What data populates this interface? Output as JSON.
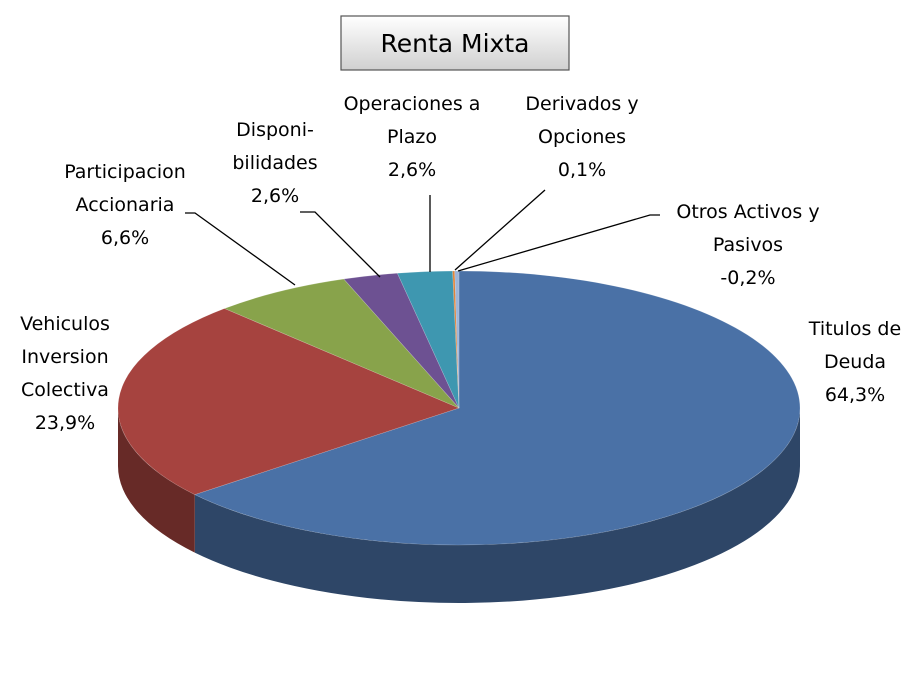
{
  "chart_data": {
    "type": "pie3d",
    "title": "Renta Mixta",
    "categories": [
      "Titulos de\nDeuda",
      "Vehiculos\nInversion\nColectiva",
      "Participacion\nAccionaria",
      "Disponi-\nbilidades",
      "Operaciones a\nPlazo",
      "Derivados y\nOpciones",
      "Otros Activos y\nPasivos"
    ],
    "values": [
      64.3,
      23.9,
      6.6,
      2.6,
      2.6,
      0.1,
      -0.2
    ],
    "value_labels": [
      "64,3%",
      "23,9%",
      "6,6%",
      "2,6%",
      "2,6%",
      "0,1%",
      "-0,2%"
    ],
    "colors": [
      "#4a71a6",
      "#a6433f",
      "#88a34b",
      "#6d5192",
      "#3e97b0",
      "#e0843a",
      "#9db5d9"
    ]
  }
}
